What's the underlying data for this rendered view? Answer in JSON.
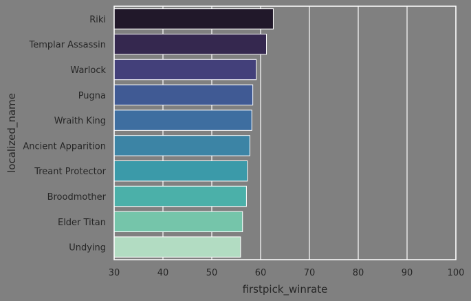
{
  "chart_data": {
    "type": "bar",
    "orientation": "horizontal",
    "title": "",
    "xlabel": "firstpick_winrate",
    "ylabel": "localized_name",
    "xlim": [
      30,
      100
    ],
    "xticks": [
      30,
      40,
      50,
      60,
      70,
      80,
      90,
      100
    ],
    "grid": true,
    "categories": [
      "Riki",
      "Templar Assassin",
      "Warlock",
      "Pugna",
      "Wraith King",
      "Ancient Apparition",
      "Treant Protector",
      "Broodmother",
      "Elder Titan",
      "Undying"
    ],
    "values": [
      62.6,
      61.2,
      59.1,
      58.4,
      58.2,
      57.8,
      57.3,
      57.1,
      56.3,
      55.9
    ],
    "colors": [
      "#21182a",
      "#35284f",
      "#43407a",
      "#405a94",
      "#3e6ea0",
      "#3c84a5",
      "#3b9aa9",
      "#4bb0a9",
      "#75c5aa",
      "#b2dcc2"
    ],
    "background": "#808080",
    "grid_color": "#ffffff"
  }
}
